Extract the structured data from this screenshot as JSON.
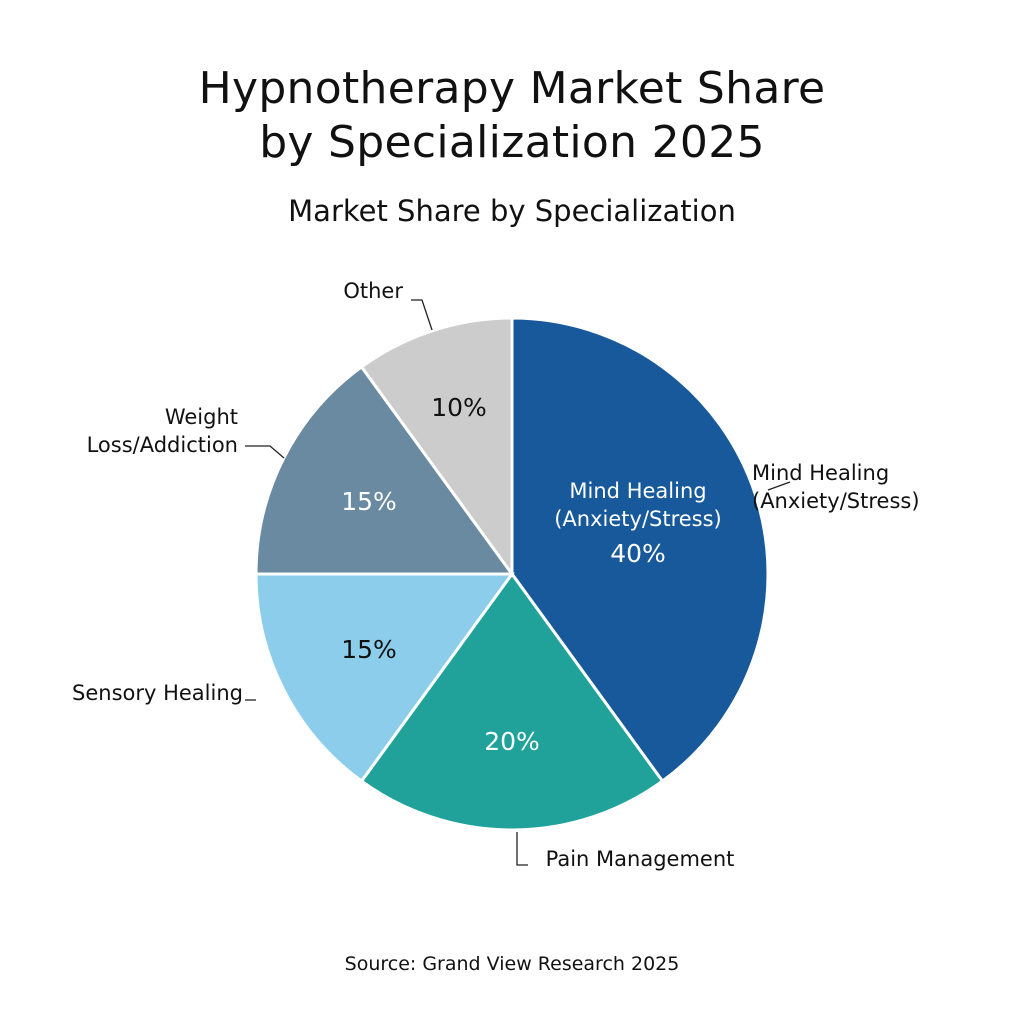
{
  "chart_data": {
    "type": "pie",
    "title": "Hypnotherapy Market Share by Specialization 2025",
    "title_lines": [
      "Hypnotherapy Market Share",
      "by Specialization 2025"
    ],
    "subtitle": "Market Share by Specialization",
    "source": "Source: Grand View Research 2025",
    "start_angle": "top, clockwise",
    "slices": [
      {
        "label": "Mind Healing (Anxiety/Stress)",
        "label_lines": [
          "Mind Healing",
          "(Anxiety/Stress)"
        ],
        "value": 40,
        "value_label": "40%",
        "color": "#17599a",
        "text_color": "#ffffff"
      },
      {
        "label": "Pain Management",
        "label_lines": [
          "Pain Management"
        ],
        "value": 20,
        "value_label": "20%",
        "color": "#20a29b",
        "text_color": "#ffffff"
      },
      {
        "label": "Sensory Healing",
        "label_lines": [
          "Sensory Healing"
        ],
        "value": 15,
        "value_label": "15%",
        "color": "#8ccdec",
        "text_color": "#111111"
      },
      {
        "label": "Weight Loss/Addiction",
        "label_lines": [
          "Weight",
          "Loss/Addiction"
        ],
        "value": 15,
        "value_label": "15%",
        "color": "#6a8aa2",
        "text_color": "#ffffff"
      },
      {
        "label": "Other",
        "label_lines": [
          "Other"
        ],
        "value": 10,
        "value_label": "10%",
        "color": "#cccccc",
        "text_color": "#111111"
      }
    ]
  }
}
